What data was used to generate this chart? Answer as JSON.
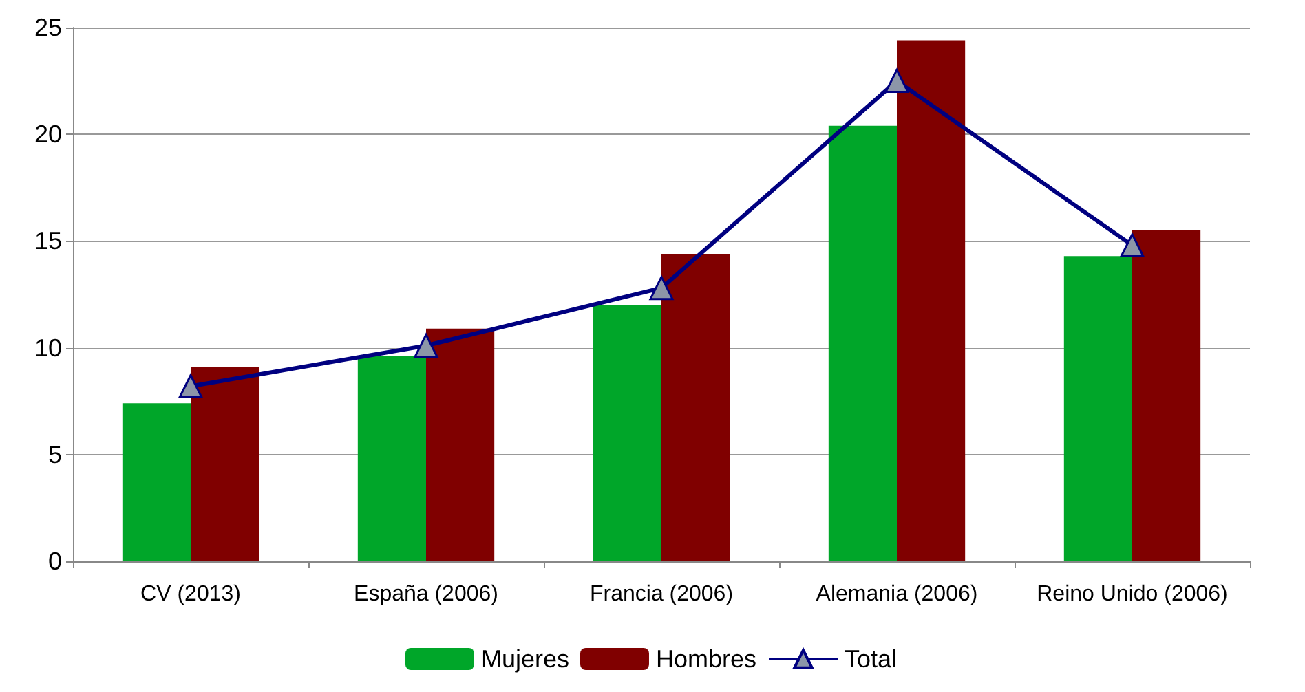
{
  "chart_data": {
    "type": "bar",
    "categories": [
      "CV (2013)",
      "España (2006)",
      "Francia (2006)",
      "Alemania (2006)",
      "Reino Unido (2006)"
    ],
    "series": [
      {
        "name": "Mujeres",
        "color": "#00a629",
        "values": [
          7.4,
          9.6,
          12.0,
          20.4,
          14.3
        ]
      },
      {
        "name": "Hombres",
        "color": "#800000",
        "values": [
          9.1,
          10.9,
          14.4,
          24.4,
          15.5
        ]
      },
      {
        "name": "Total",
        "type": "line",
        "color": "#000080",
        "marker": "triangle",
        "values": [
          8.2,
          10.1,
          12.8,
          22.5,
          14.8
        ]
      }
    ],
    "ylim": [
      0,
      25
    ],
    "yticks": [
      0,
      5,
      10,
      15,
      20,
      25
    ],
    "grid": "y",
    "legend": "bottom"
  }
}
